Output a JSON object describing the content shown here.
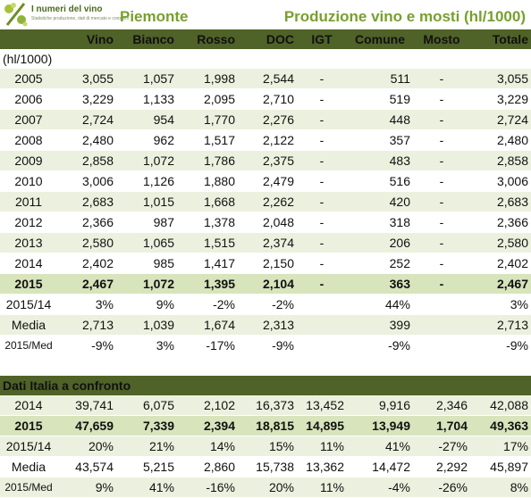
{
  "logo": {
    "title": "I numeri del vino",
    "subtitle": "Statistiche produzione, dati di mercato e consumi",
    "icon": "percent-grape-icon"
  },
  "region": "Piemonte",
  "report_title": "Produzione vino e mosti (hl/1000)",
  "unit_label": "(hl/1000)",
  "columns": [
    "Vino",
    "Bianco",
    "Rosso",
    "DOC",
    "IGT",
    "Comune",
    "Mosto",
    "Totale"
  ],
  "piemonte_rows": [
    {
      "year": "2005",
      "values": [
        "3,055",
        "1,057",
        "1,998",
        "2,544",
        "-",
        "511",
        "-",
        "3,055"
      ]
    },
    {
      "year": "2006",
      "values": [
        "3,229",
        "1,133",
        "2,095",
        "2,710",
        "-",
        "519",
        "-",
        "3,229"
      ]
    },
    {
      "year": "2007",
      "values": [
        "2,724",
        "954",
        "1,770",
        "2,276",
        "-",
        "448",
        "-",
        "2,724"
      ]
    },
    {
      "year": "2008",
      "values": [
        "2,480",
        "962",
        "1,517",
        "2,122",
        "-",
        "357",
        "-",
        "2,480"
      ]
    },
    {
      "year": "2009",
      "values": [
        "2,858",
        "1,072",
        "1,786",
        "2,375",
        "-",
        "483",
        "-",
        "2,858"
      ]
    },
    {
      "year": "2010",
      "values": [
        "3,006",
        "1,126",
        "1,880",
        "2,479",
        "-",
        "516",
        "-",
        "3,006"
      ]
    },
    {
      "year": "2011",
      "values": [
        "2,683",
        "1,015",
        "1,668",
        "2,262",
        "-",
        "420",
        "-",
        "2,683"
      ]
    },
    {
      "year": "2012",
      "values": [
        "2,366",
        "987",
        "1,378",
        "2,048",
        "-",
        "318",
        "-",
        "2,366"
      ]
    },
    {
      "year": "2013",
      "values": [
        "2,580",
        "1,065",
        "1,515",
        "2,374",
        "-",
        "206",
        "-",
        "2,580"
      ]
    },
    {
      "year": "2014",
      "values": [
        "2,402",
        "985",
        "1,417",
        "2,150",
        "-",
        "252",
        "-",
        "2,402"
      ]
    },
    {
      "year": "2015",
      "values": [
        "2,467",
        "1,072",
        "1,395",
        "2,104",
        "-",
        "363",
        "-",
        "2,467"
      ]
    },
    {
      "year": "2015/14",
      "values": [
        "3%",
        "9%",
        "-2%",
        "-2%",
        "",
        "44%",
        "",
        "3%"
      ]
    },
    {
      "year": "Media",
      "values": [
        "2,713",
        "1,039",
        "1,674",
        "2,313",
        "",
        "399",
        "",
        "2,713"
      ]
    },
    {
      "year": "2015/Med",
      "values": [
        "-9%",
        "3%",
        "-17%",
        "-9%",
        "",
        "-9%",
        "",
        "-9%"
      ]
    }
  ],
  "italia_label": "Dati Italia a confronto",
  "italia_rows": [
    {
      "year": "2014",
      "values": [
        "39,741",
        "6,075",
        "2,102",
        "16,373",
        "13,452",
        "9,916",
        "2,346",
        "42,088"
      ]
    },
    {
      "year": "2015",
      "values": [
        "47,659",
        "7,339",
        "2,394",
        "18,815",
        "14,895",
        "13,949",
        "1,704",
        "49,363"
      ]
    },
    {
      "year": "2015/14",
      "values": [
        "20%",
        "21%",
        "14%",
        "15%",
        "11%",
        "41%",
        "-27%",
        "17%"
      ]
    },
    {
      "year": "Media",
      "values": [
        "43,574",
        "5,215",
        "2,860",
        "15,738",
        "13,362",
        "14,472",
        "2,292",
        "45,897"
      ]
    },
    {
      "year": "2015/Med",
      "values": [
        "9%",
        "41%",
        "-16%",
        "20%",
        "11%",
        "-4%",
        "-26%",
        "8%"
      ]
    }
  ],
  "colors": {
    "accent": "#77a02e",
    "header_bg": "#4f6228",
    "row_light": "#ebf1de",
    "row_mid": "#d7e4bc"
  }
}
